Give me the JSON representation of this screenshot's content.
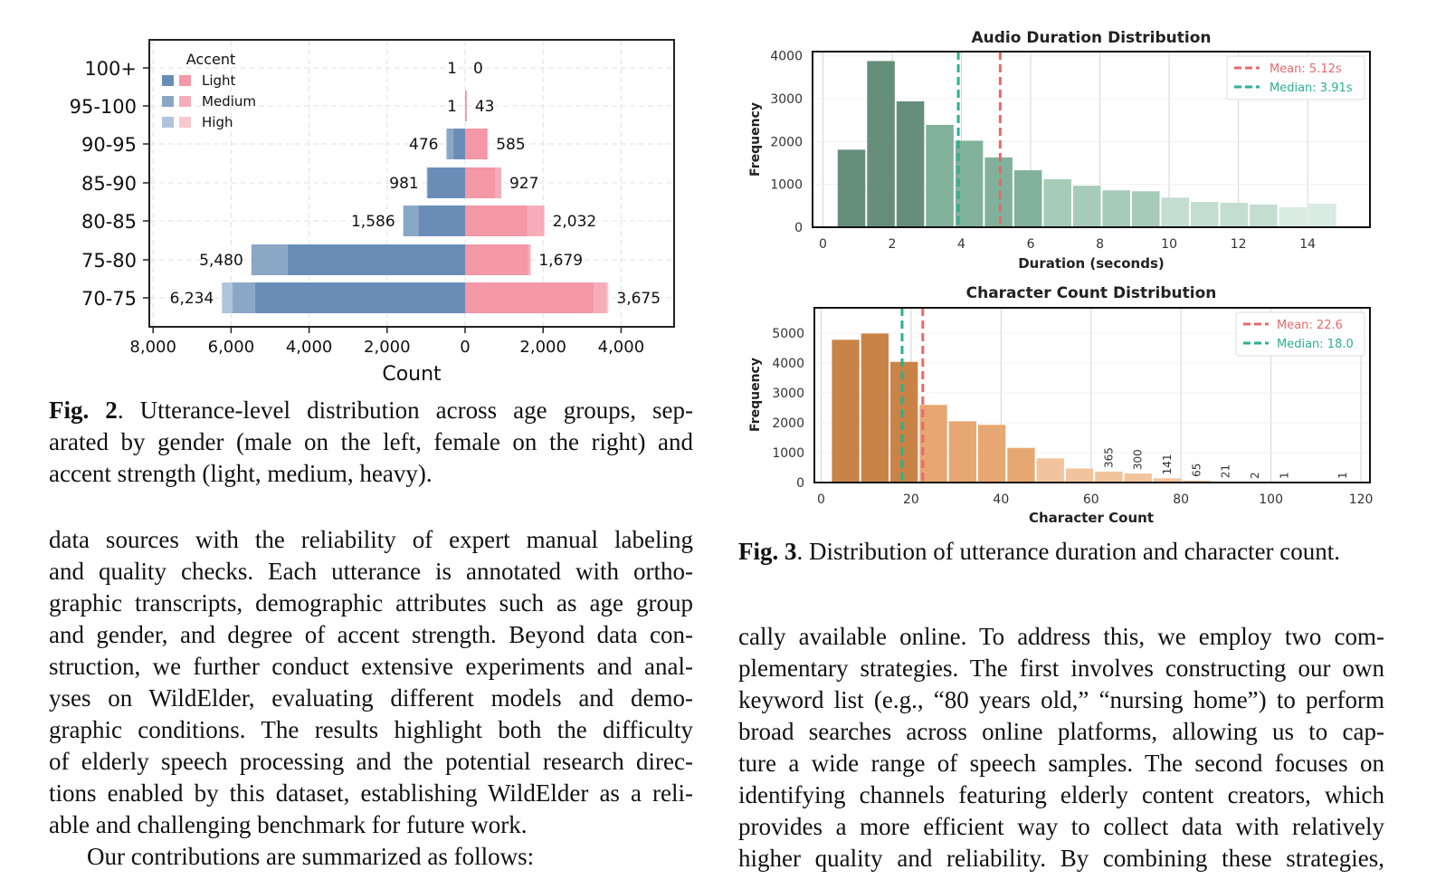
{
  "chart_data": [
    {
      "type": "bar",
      "orientation": "horizontal-pyramid",
      "title": "",
      "categories": [
        "70-75",
        "75-80",
        "80-85",
        "85-90",
        "90-95",
        "95-100",
        "100+"
      ],
      "xlabel": "Count",
      "ylabel": "",
      "xlim": [
        -8000,
        5300
      ],
      "xticks": [
        "8,000",
        "6,000",
        "4,000",
        "2,000",
        "0",
        "2,000",
        "4,000"
      ],
      "xtick_values": [
        -8000,
        -6000,
        -4000,
        -2000,
        0,
        2000,
        4000
      ],
      "grid": true,
      "legend": {
        "title": "Accent",
        "placement": "top-left",
        "entries": [
          "Light",
          "Medium",
          "High"
        ]
      },
      "colors": {
        "male": [
          "#6a8db8",
          "#8aa7c6",
          "#afc4da"
        ],
        "female": [
          "#f497a6",
          "#f6adb9",
          "#f8c7cf"
        ]
      },
      "series": [
        {
          "name": "Male Light",
          "side": "left",
          "values": [
            5390,
            4550,
            1200,
            960,
            300,
            1,
            1
          ]
        },
        {
          "name": "Male Medium",
          "side": "left",
          "values": [
            580,
            930,
            386,
            21,
            176,
            0,
            0
          ]
        },
        {
          "name": "Male High",
          "side": "left",
          "values": [
            264,
            0,
            0,
            0,
            0,
            0,
            0
          ]
        },
        {
          "name": "Female Light",
          "side": "right",
          "values": [
            3300,
            1620,
            1590,
            780,
            560,
            43,
            0
          ]
        },
        {
          "name": "Female Medium",
          "side": "right",
          "values": [
            330,
            59,
            442,
            147,
            25,
            0,
            0
          ]
        },
        {
          "name": "Female High",
          "side": "right",
          "values": [
            45,
            0,
            0,
            0,
            0,
            0,
            0
          ]
        }
      ],
      "totals": {
        "male": [
          "6,234",
          "5,480",
          "1,586",
          "981",
          "476",
          "1",
          "1"
        ],
        "female": [
          "3,675",
          "1,679",
          "2,032",
          "927",
          "585",
          "43",
          "0"
        ]
      }
    },
    {
      "type": "bar",
      "subtype": "histogram",
      "title": "Audio Duration Distribution",
      "xlabel": "Duration (seconds)",
      "ylabel": "Frequency",
      "xlim": [
        -0.3,
        15.8
      ],
      "ylim": [
        0,
        4100
      ],
      "xticks": [
        "0",
        "2",
        "4",
        "6",
        "8",
        "10",
        "12",
        "14"
      ],
      "yticks": [
        "0",
        "1000",
        "2000",
        "3000",
        "4000"
      ],
      "grid": true,
      "bin_start": 0.4,
      "bin_width": 0.85,
      "values": [
        1810,
        3880,
        2940,
        2390,
        2020,
        1630,
        1330,
        1120,
        970,
        860,
        840,
        690,
        590,
        570,
        530,
        470,
        550
      ],
      "shade_levels": [
        0,
        0,
        0,
        1,
        1,
        1,
        1,
        2,
        2,
        2,
        2,
        3,
        3,
        3,
        3,
        4,
        4
      ],
      "colors": [
        "#658e7b",
        "#82b19b",
        "#a7cbb9",
        "#c3ddd0",
        "#d9ebe2"
      ],
      "mean": {
        "value": 5.12,
        "label": "Mean: 5.12s",
        "color": "#e8696b"
      },
      "median": {
        "value": 3.91,
        "label": "Median: 3.91s",
        "color": "#2bb08f"
      },
      "legend_placement": "top-right"
    },
    {
      "type": "bar",
      "subtype": "histogram",
      "title": "Character Count Distribution",
      "xlabel": "Character Count",
      "ylabel": "Frequency",
      "xlim": [
        -1.5,
        122
      ],
      "ylim": [
        0,
        5850
      ],
      "xticks": [
        "0",
        "20",
        "40",
        "60",
        "80",
        "100",
        "120"
      ],
      "yticks": [
        "0",
        "1000",
        "2000",
        "3000",
        "4000",
        "5000"
      ],
      "grid": true,
      "bin_start": 2.2,
      "bin_width": 6.5,
      "values": [
        4780,
        4990,
        4040,
        2600,
        2050,
        1930,
        1160,
        810,
        470,
        365,
        300,
        141,
        65,
        21,
        2,
        1,
        0,
        1
      ],
      "data_labels": [
        null,
        null,
        null,
        null,
        null,
        null,
        null,
        null,
        null,
        "365",
        "300",
        "141",
        "65",
        "21",
        "2",
        "1",
        null,
        "1"
      ],
      "shade_levels": [
        0,
        0,
        0,
        1,
        1,
        1,
        1,
        2,
        2,
        2,
        2,
        2,
        2,
        2,
        2,
        2,
        2,
        2
      ],
      "colors": [
        "#c98347",
        "#e6a772",
        "#f2c49d"
      ],
      "mean": {
        "value": 22.6,
        "label": "Mean: 22.6",
        "color": "#e8696b"
      },
      "median": {
        "value": 18.0,
        "label": "Median: 18.0",
        "color": "#2bb08f"
      },
      "legend_placement": "top-right"
    }
  ],
  "fig2_caption": {
    "label": "Fig. 2",
    "lines": [
      ".  Utterance-level distribution across age groups, sep-",
      "arated by gender (male on the left, female on the right) and",
      "accent strength (light, medium, heavy)."
    ]
  },
  "fig3_caption": {
    "label": "Fig. 3",
    "text": ". Distribution of utterance duration and character count."
  },
  "left_column": {
    "lines": [
      "data sources with the reliability of expert manual labeling",
      "and quality checks.  Each utterance is annotated with ortho-",
      "graphic transcripts, demographic attributes such as age group",
      "and gender, and degree of accent strength.  Beyond data con-",
      "struction, we further conduct extensive experiments and anal-",
      "yses on WildElder, evaluating different models and demo-",
      "graphic conditions.  The results highlight both the difficulty",
      "of elderly speech processing and the potential research direc-",
      "tions enabled by this dataset, establishing WildElder as a reli-",
      "able and challenging benchmark for future work."
    ],
    "indent_line": "Our contributions are summarized as follows:"
  },
  "right_column": {
    "lines": [
      "cally available online.  To address this, we employ two com-",
      "plementary strategies. The first involves constructing our own",
      "keyword list (e.g., “80 years old,” “nursing home”) to perform",
      "broad searches across online platforms, allowing us to cap-",
      "ture a wide range of speech samples.  The second focuses on",
      "identifying channels featuring elderly content creators, which",
      "provides a more efficient way to collect data with relatively",
      "higher quality and reliability.  By combining these strategies,"
    ]
  }
}
